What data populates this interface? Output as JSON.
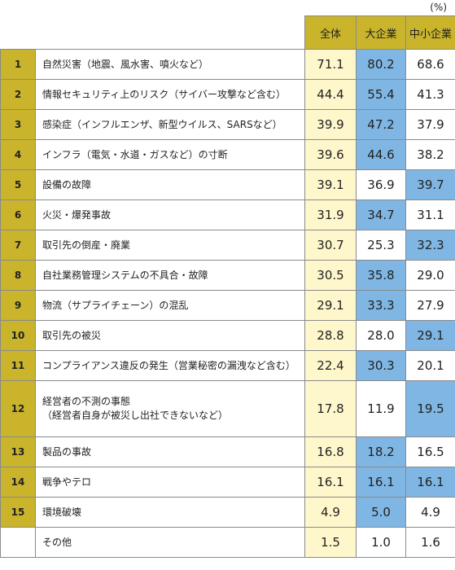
{
  "unit": "(%)",
  "colors": {
    "header": "#c9b42b",
    "total_column": "#fff7cc",
    "highlight": "#7fb6e3"
  },
  "chart_data": {
    "type": "table",
    "columns": [
      "全体",
      "大企業",
      "中小企業"
    ],
    "rows": [
      {
        "rank": "1",
        "label": "自然災害（地震、風水害、噴火など）",
        "values": [
          "71.1",
          "80.2",
          "68.6"
        ],
        "highlight": "大企業"
      },
      {
        "rank": "2",
        "label": "情報セキュリティ上のリスク（サイバー攻撃など含む）",
        "values": [
          "44.4",
          "55.4",
          "41.3"
        ],
        "highlight": "大企業"
      },
      {
        "rank": "3",
        "label": "感染症（インフルエンザ、新型ウイルス、SARSなど）",
        "values": [
          "39.9",
          "47.2",
          "37.9"
        ],
        "highlight": "大企業"
      },
      {
        "rank": "4",
        "label": "インフラ（電気・水道・ガスなど）の寸断",
        "values": [
          "39.6",
          "44.6",
          "38.2"
        ],
        "highlight": "大企業"
      },
      {
        "rank": "5",
        "label": "設備の故障",
        "values": [
          "39.1",
          "36.9",
          "39.7"
        ],
        "highlight": "中小企業"
      },
      {
        "rank": "6",
        "label": "火災・爆発事故",
        "values": [
          "31.9",
          "34.7",
          "31.1"
        ],
        "highlight": "大企業"
      },
      {
        "rank": "7",
        "label": "取引先の倒産・廃業",
        "values": [
          "30.7",
          "25.3",
          "32.3"
        ],
        "highlight": "中小企業"
      },
      {
        "rank": "8",
        "label": "自社業務管理システムの不具合・故障",
        "values": [
          "30.5",
          "35.8",
          "29.0"
        ],
        "highlight": "大企業"
      },
      {
        "rank": "9",
        "label": "物流（サプライチェーン）の混乱",
        "values": [
          "29.1",
          "33.3",
          "27.9"
        ],
        "highlight": "大企業"
      },
      {
        "rank": "10",
        "label": "取引先の被災",
        "values": [
          "28.8",
          "28.0",
          "29.1"
        ],
        "highlight": "中小企業"
      },
      {
        "rank": "11",
        "label": "コンプライアンス違反の発生（営業秘密の漏洩など含む）",
        "values": [
          "22.4",
          "30.3",
          "20.1"
        ],
        "highlight": "大企業"
      },
      {
        "rank": "12",
        "label": "経営者の不測の事態",
        "sublabel": "（経営者自身が被災し出社できないなど）",
        "values": [
          "17.8",
          "11.9",
          "19.5"
        ],
        "highlight": "中小企業"
      },
      {
        "rank": "13",
        "label": "製品の事故",
        "values": [
          "16.8",
          "18.2",
          "16.5"
        ],
        "highlight": "大企業"
      },
      {
        "rank": "14",
        "label": "戦争やテロ",
        "values": [
          "16.1",
          "16.1",
          "16.1"
        ],
        "highlight": "both"
      },
      {
        "rank": "15",
        "label": "環境破壊",
        "values": [
          "4.9",
          "5.0",
          "4.9"
        ],
        "highlight": "大企業"
      },
      {
        "rank": "",
        "label": "その他",
        "values": [
          "1.5",
          "1.0",
          "1.6"
        ],
        "highlight": "none"
      }
    ]
  }
}
